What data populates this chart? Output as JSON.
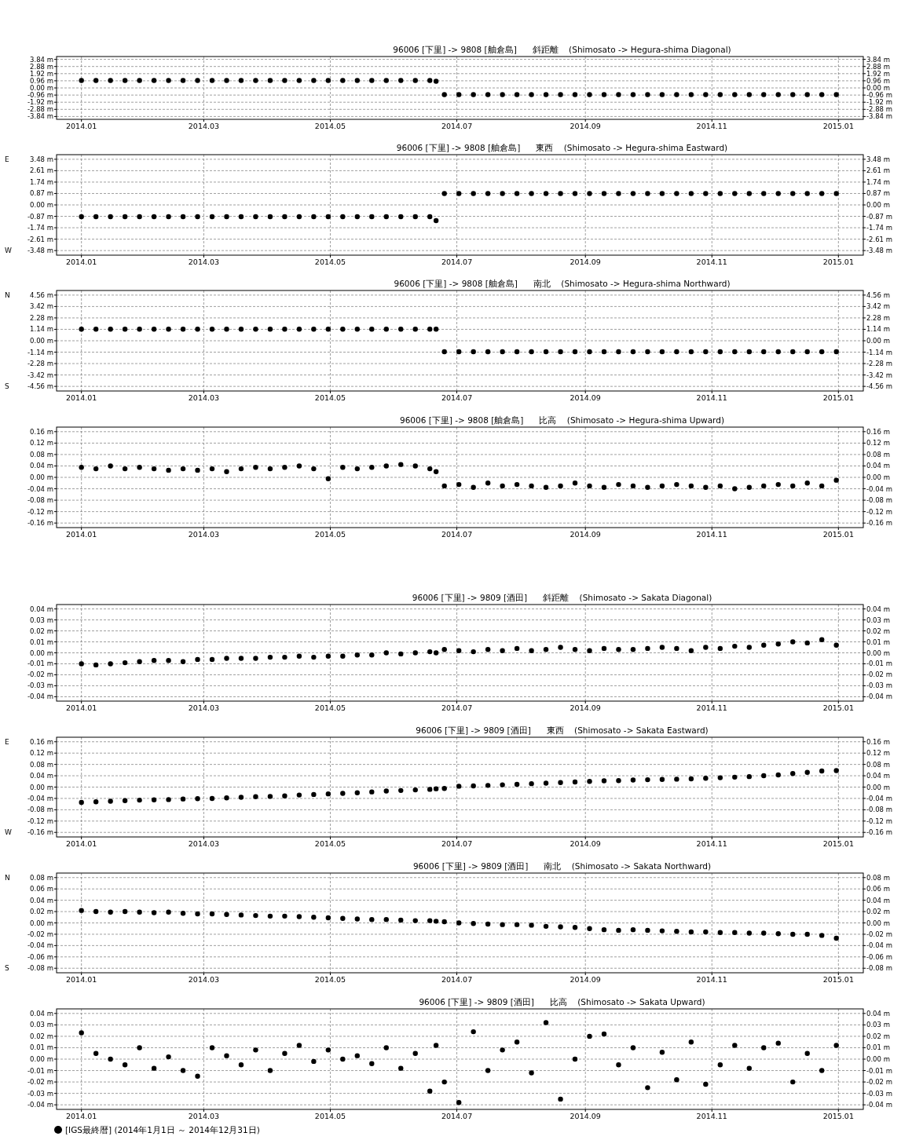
{
  "chart_data": [
    {
      "type": "scatter",
      "title": "96006 [下里] -> 9808 [舳倉島]      斜距離    (Shimosato -> Hegura-shima Diagonal)",
      "color": "#000000",
      "marker": "circle",
      "grid": true,
      "xlim": [
        "2013-12-20",
        "2015-01-13"
      ],
      "xticks": [
        {
          "value": "2014-01-01",
          "label": "2014.01"
        },
        {
          "value": "2014-03-01",
          "label": "2014.03"
        },
        {
          "value": "2014-05-01",
          "label": "2014.05"
        },
        {
          "value": "2014-07-01",
          "label": "2014.07"
        },
        {
          "value": "2014-09-01",
          "label": "2014.09"
        },
        {
          "value": "2014-11-01",
          "label": "2014.11"
        },
        {
          "value": "2015-01-01",
          "label": "2015.01"
        }
      ],
      "ylim": [
        -4.22,
        4.22
      ],
      "y2lim": [
        -4.22,
        4.22
      ],
      "yticks": [
        {
          "value": 3.84,
          "label": "3.84 m"
        },
        {
          "value": 2.88,
          "label": "2.88 m"
        },
        {
          "value": 1.92,
          "label": "1.92 m"
        },
        {
          "value": 0.96,
          "label": "0.96 m"
        },
        {
          "value": 0,
          "label": "0.00 m"
        },
        {
          "value": -0.96,
          "label": "-0.96 m"
        },
        {
          "value": -1.92,
          "label": "-1.92 m"
        },
        {
          "value": -2.88,
          "label": "-2.88 m"
        },
        {
          "value": -3.84,
          "label": "-3.84 m"
        }
      ],
      "y2ticks": [
        {
          "value": 3.84,
          "label": "3.84 m"
        },
        {
          "value": 2.88,
          "label": "2.88 m"
        },
        {
          "value": 1.92,
          "label": "1.92 m"
        },
        {
          "value": 0.96,
          "label": "0.96 m"
        },
        {
          "value": 0,
          "label": "0.00 m"
        },
        {
          "value": -0.96,
          "label": "-0.96 m"
        },
        {
          "value": -1.92,
          "label": "-1.92 m"
        },
        {
          "value": -2.88,
          "label": "-2.88 m"
        },
        {
          "value": -3.84,
          "label": "-3.84 m"
        }
      ],
      "x": [
        "2014-01-01",
        "2014-01-08",
        "2014-01-15",
        "2014-01-22",
        "2014-01-29",
        "2014-02-05",
        "2014-02-12",
        "2014-02-19",
        "2014-02-26",
        "2014-03-05",
        "2014-03-12",
        "2014-03-19",
        "2014-03-26",
        "2014-04-02",
        "2014-04-09",
        "2014-04-16",
        "2014-04-23",
        "2014-04-30",
        "2014-05-07",
        "2014-05-14",
        "2014-05-21",
        "2014-05-28",
        "2014-06-04",
        "2014-06-11",
        "2014-06-18",
        "2014-06-21",
        "2014-06-25",
        "2014-07-02",
        "2014-07-09",
        "2014-07-16",
        "2014-07-23",
        "2014-07-30",
        "2014-08-06",
        "2014-08-13",
        "2014-08-20",
        "2014-08-27",
        "2014-09-03",
        "2014-09-10",
        "2014-09-17",
        "2014-09-24",
        "2014-10-01",
        "2014-10-08",
        "2014-10-15",
        "2014-10-22",
        "2014-10-29",
        "2014-11-05",
        "2014-11-12",
        "2014-11-19",
        "2014-11-26",
        "2014-12-03",
        "2014-12-10",
        "2014-12-17",
        "2014-12-24",
        "2014-12-31"
      ],
      "values": [
        1.0,
        1.0,
        1.0,
        1.0,
        1.0,
        1.0,
        1.0,
        1.0,
        1.0,
        1.0,
        1.0,
        1.0,
        1.0,
        1.0,
        1.0,
        1.0,
        1.0,
        1.0,
        1.0,
        1.0,
        1.0,
        1.0,
        1.0,
        1.0,
        1.0,
        0.9,
        -0.9,
        -0.9,
        -0.9,
        -0.9,
        -0.9,
        -0.9,
        -0.9,
        -0.9,
        -0.9,
        -0.9,
        -0.9,
        -0.9,
        -0.9,
        -0.9,
        -0.9,
        -0.9,
        -0.9,
        -0.9,
        -0.9,
        -0.9,
        -0.9,
        -0.9,
        -0.9,
        -0.9,
        -0.9,
        -0.9,
        -0.9,
        -0.9
      ]
    },
    {
      "type": "scatter",
      "title": "96006 [下里] -> 9808 [舳倉島]      東西    (Shimosato -> Hegura-shima Eastward)",
      "color": "#000000",
      "marker": "circle",
      "grid": true,
      "annotations": [
        "E",
        "W"
      ],
      "xlim": [
        "2013-12-20",
        "2015-01-13"
      ],
      "xticks": [
        {
          "value": "2014-01-01",
          "label": "2014.01"
        },
        {
          "value": "2014-03-01",
          "label": "2014.03"
        },
        {
          "value": "2014-05-01",
          "label": "2014.05"
        },
        {
          "value": "2014-07-01",
          "label": "2014.07"
        },
        {
          "value": "2014-09-01",
          "label": "2014.09"
        },
        {
          "value": "2014-11-01",
          "label": "2014.11"
        },
        {
          "value": "2015-01-01",
          "label": "2015.01"
        }
      ],
      "ylim": [
        -3.83,
        3.83
      ],
      "y2lim": [
        -3.83,
        3.83
      ],
      "yticks": [
        {
          "value": 3.48,
          "label": "3.48 m"
        },
        {
          "value": 2.61,
          "label": "2.61 m"
        },
        {
          "value": 1.74,
          "label": "1.74 m"
        },
        {
          "value": 0.87,
          "label": "0.87 m"
        },
        {
          "value": 0,
          "label": "0.00 m"
        },
        {
          "value": -0.87,
          "label": "-0.87 m"
        },
        {
          "value": -1.74,
          "label": "-1.74 m"
        },
        {
          "value": -2.61,
          "label": "-2.61 m"
        },
        {
          "value": -3.48,
          "label": "-3.48 m"
        }
      ],
      "y2ticks": [
        {
          "value": 3.48,
          "label": "3.48 m"
        },
        {
          "value": 2.61,
          "label": "2.61 m"
        },
        {
          "value": 1.74,
          "label": "1.74 m"
        },
        {
          "value": 0.87,
          "label": "0.87 m"
        },
        {
          "value": 0,
          "label": "0.00 m"
        },
        {
          "value": -0.87,
          "label": "-0.87 m"
        },
        {
          "value": -1.74,
          "label": "-1.74 m"
        },
        {
          "value": -2.61,
          "label": "-2.61 m"
        },
        {
          "value": -3.48,
          "label": "-3.48 m"
        }
      ],
      "x": [
        "2014-01-01",
        "2014-01-08",
        "2014-01-15",
        "2014-01-22",
        "2014-01-29",
        "2014-02-05",
        "2014-02-12",
        "2014-02-19",
        "2014-02-26",
        "2014-03-05",
        "2014-03-12",
        "2014-03-19",
        "2014-03-26",
        "2014-04-02",
        "2014-04-09",
        "2014-04-16",
        "2014-04-23",
        "2014-04-30",
        "2014-05-07",
        "2014-05-14",
        "2014-05-21",
        "2014-05-28",
        "2014-06-04",
        "2014-06-11",
        "2014-06-18",
        "2014-06-21",
        "2014-06-25",
        "2014-07-02",
        "2014-07-09",
        "2014-07-16",
        "2014-07-23",
        "2014-07-30",
        "2014-08-06",
        "2014-08-13",
        "2014-08-20",
        "2014-08-27",
        "2014-09-03",
        "2014-09-10",
        "2014-09-17",
        "2014-09-24",
        "2014-10-01",
        "2014-10-08",
        "2014-10-15",
        "2014-10-22",
        "2014-10-29",
        "2014-11-05",
        "2014-11-12",
        "2014-11-19",
        "2014-11-26",
        "2014-12-03",
        "2014-12-10",
        "2014-12-17",
        "2014-12-24",
        "2014-12-31"
      ],
      "values": [
        -0.9,
        -0.9,
        -0.9,
        -0.9,
        -0.9,
        -0.9,
        -0.9,
        -0.9,
        -0.9,
        -0.9,
        -0.9,
        -0.9,
        -0.9,
        -0.9,
        -0.9,
        -0.9,
        -0.9,
        -0.9,
        -0.9,
        -0.9,
        -0.9,
        -0.9,
        -0.9,
        -0.9,
        -0.9,
        -1.2,
        0.87,
        0.87,
        0.87,
        0.87,
        0.87,
        0.87,
        0.87,
        0.87,
        0.87,
        0.87,
        0.87,
        0.87,
        0.87,
        0.87,
        0.87,
        0.87,
        0.87,
        0.87,
        0.87,
        0.87,
        0.87,
        0.87,
        0.87,
        0.87,
        0.87,
        0.87,
        0.87,
        0.87
      ]
    },
    {
      "type": "scatter",
      "title": "96006 [下里] -> 9808 [舳倉島]      南北    (Shimosato -> Hegura-shima Northward)",
      "color": "#000000",
      "marker": "circle",
      "grid": true,
      "annotations": [
        "N",
        "S"
      ],
      "xlim": [
        "2013-12-20",
        "2015-01-13"
      ],
      "xticks": [
        {
          "value": "2014-01-01",
          "label": "2014.01"
        },
        {
          "value": "2014-03-01",
          "label": "2014.03"
        },
        {
          "value": "2014-05-01",
          "label": "2014.05"
        },
        {
          "value": "2014-07-01",
          "label": "2014.07"
        },
        {
          "value": "2014-09-01",
          "label": "2014.09"
        },
        {
          "value": "2014-11-01",
          "label": "2014.11"
        },
        {
          "value": "2015-01-01",
          "label": "2015.01"
        }
      ],
      "ylim": [
        -5.02,
        5.02
      ],
      "y2lim": [
        -5.02,
        5.02
      ],
      "yticks": [
        {
          "value": 4.56,
          "label": "4.56 m"
        },
        {
          "value": 3.42,
          "label": "3.42 m"
        },
        {
          "value": 2.28,
          "label": "2.28 m"
        },
        {
          "value": 1.14,
          "label": "1.14 m"
        },
        {
          "value": 0,
          "label": "0.00 m"
        },
        {
          "value": -1.14,
          "label": "-1.14 m"
        },
        {
          "value": -2.28,
          "label": "-2.28 m"
        },
        {
          "value": -3.42,
          "label": "-3.42 m"
        },
        {
          "value": -4.56,
          "label": "-4.56 m"
        }
      ],
      "y2ticks": [
        {
          "value": 4.56,
          "label": "4.56 m"
        },
        {
          "value": 3.42,
          "label": "3.42 m"
        },
        {
          "value": 2.28,
          "label": "2.28 m"
        },
        {
          "value": 1.14,
          "label": "1.14 m"
        },
        {
          "value": 0,
          "label": "0.00 m"
        },
        {
          "value": -1.14,
          "label": "-1.14 m"
        },
        {
          "value": -2.28,
          "label": "-2.28 m"
        },
        {
          "value": -3.42,
          "label": "-3.42 m"
        },
        {
          "value": -4.56,
          "label": "-4.56 m"
        }
      ],
      "x": [
        "2014-01-01",
        "2014-01-08",
        "2014-01-15",
        "2014-01-22",
        "2014-01-29",
        "2014-02-05",
        "2014-02-12",
        "2014-02-19",
        "2014-02-26",
        "2014-03-05",
        "2014-03-12",
        "2014-03-19",
        "2014-03-26",
        "2014-04-02",
        "2014-04-09",
        "2014-04-16",
        "2014-04-23",
        "2014-04-30",
        "2014-05-07",
        "2014-05-14",
        "2014-05-21",
        "2014-05-28",
        "2014-06-04",
        "2014-06-11",
        "2014-06-18",
        "2014-06-21",
        "2014-06-25",
        "2014-07-02",
        "2014-07-09",
        "2014-07-16",
        "2014-07-23",
        "2014-07-30",
        "2014-08-06",
        "2014-08-13",
        "2014-08-20",
        "2014-08-27",
        "2014-09-03",
        "2014-09-10",
        "2014-09-17",
        "2014-09-24",
        "2014-10-01",
        "2014-10-08",
        "2014-10-15",
        "2014-10-22",
        "2014-10-29",
        "2014-11-05",
        "2014-11-12",
        "2014-11-19",
        "2014-11-26",
        "2014-12-03",
        "2014-12-10",
        "2014-12-17",
        "2014-12-24",
        "2014-12-31"
      ],
      "values": [
        1.16,
        1.16,
        1.16,
        1.16,
        1.16,
        1.16,
        1.16,
        1.16,
        1.16,
        1.16,
        1.16,
        1.16,
        1.16,
        1.16,
        1.16,
        1.16,
        1.16,
        1.16,
        1.16,
        1.16,
        1.16,
        1.16,
        1.16,
        1.16,
        1.16,
        1.16,
        -1.1,
        -1.1,
        -1.1,
        -1.1,
        -1.1,
        -1.1,
        -1.1,
        -1.1,
        -1.1,
        -1.1,
        -1.1,
        -1.1,
        -1.1,
        -1.1,
        -1.1,
        -1.1,
        -1.1,
        -1.1,
        -1.1,
        -1.1,
        -1.1,
        -1.1,
        -1.1,
        -1.1,
        -1.1,
        -1.1,
        -1.1,
        -1.1
      ]
    },
    {
      "type": "scatter",
      "title": "96006 [下里] -> 9808 [舳倉島]      比高    (Shimosato -> Hegura-shima Upward)",
      "color": "#000000",
      "marker": "circle",
      "grid": true,
      "xlim": [
        "2013-12-20",
        "2015-01-13"
      ],
      "xticks": [
        {
          "value": "2014-01-01",
          "label": "2014.01"
        },
        {
          "value": "2014-03-01",
          "label": "2014.03"
        },
        {
          "value": "2014-05-01",
          "label": "2014.05"
        },
        {
          "value": "2014-07-01",
          "label": "2014.07"
        },
        {
          "value": "2014-09-01",
          "label": "2014.09"
        },
        {
          "value": "2014-11-01",
          "label": "2014.11"
        },
        {
          "value": "2015-01-01",
          "label": "2015.01"
        }
      ],
      "ylim": [
        -0.176,
        0.176
      ],
      "y2lim": [
        -0.176,
        0.176
      ],
      "yticks": [
        {
          "value": 0.16,
          "label": "0.16 m"
        },
        {
          "value": 0.12,
          "label": "0.12 m"
        },
        {
          "value": 0.08,
          "label": "0.08 m"
        },
        {
          "value": 0.04,
          "label": "0.04 m"
        },
        {
          "value": 0,
          "label": "0.00 m"
        },
        {
          "value": -0.04,
          "label": "-0.04 m"
        },
        {
          "value": -0.08,
          "label": "-0.08 m"
        },
        {
          "value": -0.12,
          "label": "-0.12 m"
        },
        {
          "value": -0.16,
          "label": "-0.16 m"
        }
      ],
      "y2ticks": [
        {
          "value": 0.16,
          "label": "0.16 m"
        },
        {
          "value": 0.12,
          "label": "0.12 m"
        },
        {
          "value": 0.08,
          "label": "0.08 m"
        },
        {
          "value": 0.04,
          "label": "0.04 m"
        },
        {
          "value": 0,
          "label": "0.00 m"
        },
        {
          "value": -0.04,
          "label": "-0.04 m"
        },
        {
          "value": -0.08,
          "label": "-0.08 m"
        },
        {
          "value": -0.12,
          "label": "-0.12 m"
        },
        {
          "value": -0.16,
          "label": "-0.16 m"
        }
      ],
      "x": [
        "2014-01-01",
        "2014-01-08",
        "2014-01-15",
        "2014-01-22",
        "2014-01-29",
        "2014-02-05",
        "2014-02-12",
        "2014-02-19",
        "2014-02-26",
        "2014-03-05",
        "2014-03-12",
        "2014-03-19",
        "2014-03-26",
        "2014-04-02",
        "2014-04-09",
        "2014-04-16",
        "2014-04-23",
        "2014-04-30",
        "2014-05-07",
        "2014-05-14",
        "2014-05-21",
        "2014-05-28",
        "2014-06-04",
        "2014-06-11",
        "2014-06-18",
        "2014-06-21",
        "2014-06-25",
        "2014-07-02",
        "2014-07-09",
        "2014-07-16",
        "2014-07-23",
        "2014-07-30",
        "2014-08-06",
        "2014-08-13",
        "2014-08-20",
        "2014-08-27",
        "2014-09-03",
        "2014-09-10",
        "2014-09-17",
        "2014-09-24",
        "2014-10-01",
        "2014-10-08",
        "2014-10-15",
        "2014-10-22",
        "2014-10-29",
        "2014-11-05",
        "2014-11-12",
        "2014-11-19",
        "2014-11-26",
        "2014-12-03",
        "2014-12-10",
        "2014-12-17",
        "2014-12-24",
        "2014-12-31"
      ],
      "values": [
        0.035,
        0.03,
        0.04,
        0.03,
        0.035,
        0.03,
        0.025,
        0.03,
        0.025,
        0.03,
        0.02,
        0.03,
        0.035,
        0.03,
        0.035,
        0.04,
        0.03,
        -0.005,
        0.035,
        0.03,
        0.035,
        0.04,
        0.045,
        0.04,
        0.03,
        0.02,
        -0.03,
        -0.025,
        -0.035,
        -0.02,
        -0.03,
        -0.025,
        -0.03,
        -0.035,
        -0.03,
        -0.02,
        -0.03,
        -0.035,
        -0.025,
        -0.03,
        -0.035,
        -0.03,
        -0.025,
        -0.03,
        -0.035,
        -0.03,
        -0.04,
        -0.035,
        -0.03,
        -0.025,
        -0.03,
        -0.02,
        -0.03,
        -0.01
      ]
    },
    {
      "type": "scatter",
      "title": "96006 [下里] -> 9809 [酒田]      斜距離    (Shimosato -> Sakata Diagonal)",
      "color": "#000000",
      "marker": "circle",
      "grid": true,
      "xlim": [
        "2013-12-20",
        "2015-01-13"
      ],
      "xticks": [
        {
          "value": "2014-01-01",
          "label": "2014.01"
        },
        {
          "value": "2014-03-01",
          "label": "2014.03"
        },
        {
          "value": "2014-05-01",
          "label": "2014.05"
        },
        {
          "value": "2014-07-01",
          "label": "2014.07"
        },
        {
          "value": "2014-09-01",
          "label": "2014.09"
        },
        {
          "value": "2014-11-01",
          "label": "2014.11"
        },
        {
          "value": "2015-01-01",
          "label": "2015.01"
        }
      ],
      "ylim": [
        -0.044,
        0.044
      ],
      "y2lim": [
        -0.044,
        0.044
      ],
      "yticks": [
        {
          "value": 0.04,
          "label": "0.04 m"
        },
        {
          "value": 0.03,
          "label": "0.03 m"
        },
        {
          "value": 0.02,
          "label": "0.02 m"
        },
        {
          "value": 0.01,
          "label": "0.01 m"
        },
        {
          "value": 0,
          "label": "0.00 m"
        },
        {
          "value": -0.01,
          "label": "-0.01 m"
        },
        {
          "value": -0.02,
          "label": "-0.02 m"
        },
        {
          "value": -0.03,
          "label": "-0.03 m"
        },
        {
          "value": -0.04,
          "label": "-0.04 m"
        }
      ],
      "y2ticks": [
        {
          "value": 0.04,
          "label": "0.04 m"
        },
        {
          "value": 0.03,
          "label": "0.03 m"
        },
        {
          "value": 0.02,
          "label": "0.02 m"
        },
        {
          "value": 0.01,
          "label": "0.01 m"
        },
        {
          "value": 0,
          "label": "0.00 m"
        },
        {
          "value": -0.01,
          "label": "-0.01 m"
        },
        {
          "value": -0.02,
          "label": "-0.02 m"
        },
        {
          "value": -0.03,
          "label": "-0.03 m"
        },
        {
          "value": -0.04,
          "label": "-0.04 m"
        }
      ],
      "x": [
        "2014-01-01",
        "2014-01-08",
        "2014-01-15",
        "2014-01-22",
        "2014-01-29",
        "2014-02-05",
        "2014-02-12",
        "2014-02-19",
        "2014-02-26",
        "2014-03-05",
        "2014-03-12",
        "2014-03-19",
        "2014-03-26",
        "2014-04-02",
        "2014-04-09",
        "2014-04-16",
        "2014-04-23",
        "2014-04-30",
        "2014-05-07",
        "2014-05-14",
        "2014-05-21",
        "2014-05-28",
        "2014-06-04",
        "2014-06-11",
        "2014-06-18",
        "2014-06-21",
        "2014-06-25",
        "2014-07-02",
        "2014-07-09",
        "2014-07-16",
        "2014-07-23",
        "2014-07-30",
        "2014-08-06",
        "2014-08-13",
        "2014-08-20",
        "2014-08-27",
        "2014-09-03",
        "2014-09-10",
        "2014-09-17",
        "2014-09-24",
        "2014-10-01",
        "2014-10-08",
        "2014-10-15",
        "2014-10-22",
        "2014-10-29",
        "2014-11-05",
        "2014-11-12",
        "2014-11-19",
        "2014-11-26",
        "2014-12-03",
        "2014-12-10",
        "2014-12-17",
        "2014-12-24",
        "2014-12-31"
      ],
      "values": [
        -0.01,
        -0.011,
        -0.01,
        -0.009,
        -0.008,
        -0.007,
        -0.007,
        -0.008,
        -0.006,
        -0.006,
        -0.005,
        -0.005,
        -0.005,
        -0.004,
        -0.004,
        -0.003,
        -0.004,
        -0.003,
        -0.003,
        -0.002,
        -0.002,
        0.0,
        -0.001,
        0.0,
        0.001,
        0.0,
        0.003,
        0.002,
        0.001,
        0.003,
        0.002,
        0.004,
        0.002,
        0.003,
        0.005,
        0.003,
        0.002,
        0.004,
        0.003,
        0.003,
        0.004,
        0.005,
        0.004,
        0.002,
        0.005,
        0.004,
        0.006,
        0.005,
        0.007,
        0.008,
        0.01,
        0.009,
        0.012,
        0.007
      ]
    },
    {
      "type": "scatter",
      "title": "96006 [下里] -> 9809 [酒田]      東西    (Shimosato -> Sakata Eastward)",
      "color": "#000000",
      "marker": "circle",
      "grid": true,
      "annotations": [
        "E",
        "W"
      ],
      "xlim": [
        "2013-12-20",
        "2015-01-13"
      ],
      "xticks": [
        {
          "value": "2014-01-01",
          "label": "2014.01"
        },
        {
          "value": "2014-03-01",
          "label": "2014.03"
        },
        {
          "value": "2014-05-01",
          "label": "2014.05"
        },
        {
          "value": "2014-07-01",
          "label": "2014.07"
        },
        {
          "value": "2014-09-01",
          "label": "2014.09"
        },
        {
          "value": "2014-11-01",
          "label": "2014.11"
        },
        {
          "value": "2015-01-01",
          "label": "2015.01"
        }
      ],
      "ylim": [
        -0.176,
        0.176
      ],
      "y2lim": [
        -0.176,
        0.176
      ],
      "yticks": [
        {
          "value": 0.16,
          "label": "0.16 m"
        },
        {
          "value": 0.12,
          "label": "0.12 m"
        },
        {
          "value": 0.08,
          "label": "0.08 m"
        },
        {
          "value": 0.04,
          "label": "0.04 m"
        },
        {
          "value": 0,
          "label": "0.00 m"
        },
        {
          "value": -0.04,
          "label": "-0.04 m"
        },
        {
          "value": -0.08,
          "label": "-0.08 m"
        },
        {
          "value": -0.12,
          "label": "-0.12 m"
        },
        {
          "value": -0.16,
          "label": "-0.16 m"
        }
      ],
      "y2ticks": [
        {
          "value": 0.16,
          "label": "0.16 m"
        },
        {
          "value": 0.12,
          "label": "0.12 m"
        },
        {
          "value": 0.08,
          "label": "0.08 m"
        },
        {
          "value": 0.04,
          "label": "0.04 m"
        },
        {
          "value": 0,
          "label": "0.00 m"
        },
        {
          "value": -0.04,
          "label": "-0.04 m"
        },
        {
          "value": -0.08,
          "label": "-0.08 m"
        },
        {
          "value": -0.12,
          "label": "-0.12 m"
        },
        {
          "value": -0.16,
          "label": "-0.16 m"
        }
      ],
      "x": [
        "2014-01-01",
        "2014-01-08",
        "2014-01-15",
        "2014-01-22",
        "2014-01-29",
        "2014-02-05",
        "2014-02-12",
        "2014-02-19",
        "2014-02-26",
        "2014-03-05",
        "2014-03-12",
        "2014-03-19",
        "2014-03-26",
        "2014-04-02",
        "2014-04-09",
        "2014-04-16",
        "2014-04-23",
        "2014-04-30",
        "2014-05-07",
        "2014-05-14",
        "2014-05-21",
        "2014-05-28",
        "2014-06-04",
        "2014-06-11",
        "2014-06-18",
        "2014-06-21",
        "2014-06-25",
        "2014-07-02",
        "2014-07-09",
        "2014-07-16",
        "2014-07-23",
        "2014-07-30",
        "2014-08-06",
        "2014-08-13",
        "2014-08-20",
        "2014-08-27",
        "2014-09-03",
        "2014-09-10",
        "2014-09-17",
        "2014-09-24",
        "2014-10-01",
        "2014-10-08",
        "2014-10-15",
        "2014-10-22",
        "2014-10-29",
        "2014-11-05",
        "2014-11-12",
        "2014-11-19",
        "2014-11-26",
        "2014-12-03",
        "2014-12-10",
        "2014-12-17",
        "2014-12-24",
        "2014-12-31"
      ],
      "values": [
        -0.054,
        -0.052,
        -0.05,
        -0.048,
        -0.046,
        -0.045,
        -0.044,
        -0.042,
        -0.041,
        -0.04,
        -0.038,
        -0.036,
        -0.034,
        -0.033,
        -0.031,
        -0.028,
        -0.026,
        -0.024,
        -0.022,
        -0.02,
        -0.017,
        -0.014,
        -0.012,
        -0.01,
        -0.008,
        -0.006,
        -0.005,
        0.003,
        0.004,
        0.006,
        0.008,
        0.01,
        0.012,
        0.014,
        0.016,
        0.018,
        0.02,
        0.022,
        0.023,
        0.025,
        0.026,
        0.027,
        0.028,
        0.029,
        0.031,
        0.033,
        0.035,
        0.037,
        0.04,
        0.043,
        0.048,
        0.052,
        0.057,
        0.058
      ]
    },
    {
      "type": "scatter",
      "title": "96006 [下里] -> 9809 [酒田]      南北    (Shimosato -> Sakata Northward)",
      "color": "#000000",
      "marker": "circle",
      "grid": true,
      "annotations": [
        "N",
        "S"
      ],
      "xlim": [
        "2013-12-20",
        "2015-01-13"
      ],
      "xticks": [
        {
          "value": "2014-01-01",
          "label": "2014.01"
        },
        {
          "value": "2014-03-01",
          "label": "2014.03"
        },
        {
          "value": "2014-05-01",
          "label": "2014.05"
        },
        {
          "value": "2014-07-01",
          "label": "2014.07"
        },
        {
          "value": "2014-09-01",
          "label": "2014.09"
        },
        {
          "value": "2014-11-01",
          "label": "2014.11"
        },
        {
          "value": "2015-01-01",
          "label": "2015.01"
        }
      ],
      "ylim": [
        -0.088,
        0.088
      ],
      "y2lim": [
        -0.088,
        0.088
      ],
      "yticks": [
        {
          "value": 0.08,
          "label": "0.08 m"
        },
        {
          "value": 0.06,
          "label": "0.06 m"
        },
        {
          "value": 0.04,
          "label": "0.04 m"
        },
        {
          "value": 0.02,
          "label": "0.02 m"
        },
        {
          "value": 0,
          "label": "0.00 m"
        },
        {
          "value": -0.02,
          "label": "-0.02 m"
        },
        {
          "value": -0.04,
          "label": "-0.04 m"
        },
        {
          "value": -0.06,
          "label": "-0.06 m"
        },
        {
          "value": -0.08,
          "label": "-0.08 m"
        }
      ],
      "y2ticks": [
        {
          "value": 0.08,
          "label": "0.08 m"
        },
        {
          "value": 0.06,
          "label": "0.06 m"
        },
        {
          "value": 0.04,
          "label": "0.04 m"
        },
        {
          "value": 0.02,
          "label": "0.02 m"
        },
        {
          "value": 0,
          "label": "0.00 m"
        },
        {
          "value": -0.02,
          "label": "-0.02 m"
        },
        {
          "value": -0.04,
          "label": "-0.04 m"
        },
        {
          "value": -0.06,
          "label": "-0.06 m"
        },
        {
          "value": -0.08,
          "label": "-0.08 m"
        }
      ],
      "x": [
        "2014-01-01",
        "2014-01-08",
        "2014-01-15",
        "2014-01-22",
        "2014-01-29",
        "2014-02-05",
        "2014-02-12",
        "2014-02-19",
        "2014-02-26",
        "2014-03-05",
        "2014-03-12",
        "2014-03-19",
        "2014-03-26",
        "2014-04-02",
        "2014-04-09",
        "2014-04-16",
        "2014-04-23",
        "2014-04-30",
        "2014-05-07",
        "2014-05-14",
        "2014-05-21",
        "2014-05-28",
        "2014-06-04",
        "2014-06-11",
        "2014-06-18",
        "2014-06-21",
        "2014-06-25",
        "2014-07-02",
        "2014-07-09",
        "2014-07-16",
        "2014-07-23",
        "2014-07-30",
        "2014-08-06",
        "2014-08-13",
        "2014-08-20",
        "2014-08-27",
        "2014-09-03",
        "2014-09-10",
        "2014-09-17",
        "2014-09-24",
        "2014-10-01",
        "2014-10-08",
        "2014-10-15",
        "2014-10-22",
        "2014-10-29",
        "2014-11-05",
        "2014-11-12",
        "2014-11-19",
        "2014-11-26",
        "2014-12-03",
        "2014-12-10",
        "2014-12-17",
        "2014-12-24",
        "2014-12-31"
      ],
      "values": [
        0.022,
        0.02,
        0.019,
        0.02,
        0.019,
        0.018,
        0.019,
        0.017,
        0.016,
        0.016,
        0.015,
        0.014,
        0.013,
        0.012,
        0.012,
        0.011,
        0.01,
        0.009,
        0.008,
        0.007,
        0.006,
        0.006,
        0.005,
        0.004,
        0.004,
        0.003,
        0.002,
        0.0,
        -0.001,
        -0.002,
        -0.003,
        -0.003,
        -0.004,
        -0.006,
        -0.007,
        -0.008,
        -0.01,
        -0.012,
        -0.013,
        -0.012,
        -0.013,
        -0.014,
        -0.015,
        -0.016,
        -0.016,
        -0.017,
        -0.017,
        -0.018,
        -0.018,
        -0.019,
        -0.02,
        -0.02,
        -0.022,
        -0.027
      ]
    },
    {
      "type": "scatter",
      "title": "96006 [下里] -> 9809 [酒田]      比高    (Shimosato -> Sakata Upward)",
      "marker": "circle",
      "grid": true,
      "legend": "bottom",
      "xlim": [
        "2013-12-20",
        "2015-01-13"
      ],
      "xticks": [
        {
          "value": "2014-01-01",
          "label": "2014.01"
        },
        {
          "value": "2014-03-01",
          "label": "2014.03"
        },
        {
          "value": "2014-05-01",
          "label": "2014.05"
        },
        {
          "value": "2014-07-01",
          "label": "2014.07"
        },
        {
          "value": "2014-09-01",
          "label": "2014.09"
        },
        {
          "value": "2014-11-01",
          "label": "2014.11"
        },
        {
          "value": "2015-01-01",
          "label": "2015.01"
        }
      ],
      "ylim": [
        -0.044,
        0.044
      ],
      "y2lim": [
        -0.044,
        0.044
      ],
      "yticks": [
        {
          "value": 0.04,
          "label": "0.04 m"
        },
        {
          "value": 0.03,
          "label": "0.03 m"
        },
        {
          "value": 0.02,
          "label": "0.02 m"
        },
        {
          "value": 0.01,
          "label": "0.01 m"
        },
        {
          "value": 0,
          "label": "0.00 m"
        },
        {
          "value": -0.01,
          "label": "-0.01 m"
        },
        {
          "value": -0.02,
          "label": "-0.02 m"
        },
        {
          "value": -0.03,
          "label": "-0.03 m"
        },
        {
          "value": -0.04,
          "label": "-0.04 m"
        }
      ],
      "y2ticks": [
        {
          "value": 0.04,
          "label": "0.04 m"
        },
        {
          "value": 0.03,
          "label": "0.03 m"
        },
        {
          "value": 0.02,
          "label": "0.02 m"
        },
        {
          "value": 0.01,
          "label": "0.01 m"
        },
        {
          "value": 0,
          "label": "0.00 m"
        },
        {
          "value": -0.01,
          "label": "-0.01 m"
        },
        {
          "value": -0.02,
          "label": "-0.02 m"
        },
        {
          "value": -0.03,
          "label": "-0.03 m"
        },
        {
          "value": -0.04,
          "label": "-0.04 m"
        }
      ],
      "x": [
        "2014-01-01",
        "2014-01-08",
        "2014-01-15",
        "2014-01-22",
        "2014-01-29",
        "2014-02-05",
        "2014-02-12",
        "2014-02-19",
        "2014-02-26",
        "2014-03-05",
        "2014-03-12",
        "2014-03-19",
        "2014-03-26",
        "2014-04-02",
        "2014-04-09",
        "2014-04-16",
        "2014-04-23",
        "2014-04-30",
        "2014-05-07",
        "2014-05-14",
        "2014-05-21",
        "2014-05-28",
        "2014-06-04",
        "2014-06-11",
        "2014-06-18",
        "2014-06-21",
        "2014-06-25",
        "2014-07-02",
        "2014-07-09",
        "2014-07-16",
        "2014-07-23",
        "2014-07-30",
        "2014-08-06",
        "2014-08-13",
        "2014-08-20",
        "2014-08-27",
        "2014-09-03",
        "2014-09-10",
        "2014-09-17",
        "2014-09-24",
        "2014-10-01",
        "2014-10-08",
        "2014-10-15",
        "2014-10-22",
        "2014-10-29",
        "2014-11-05",
        "2014-11-12",
        "2014-11-19",
        "2014-11-26",
        "2014-12-03",
        "2014-12-10",
        "2014-12-17",
        "2014-12-24",
        "2014-12-31"
      ],
      "series": [
        {
          "name": "[IGS最終暦] (2014年1月1日 ～ 2014年12月31日)",
          "color": "#000000",
          "values": [
            0.023,
            0.005,
            0.0,
            -0.005,
            0.01,
            -0.008,
            0.002,
            -0.01,
            -0.015,
            0.01,
            0.003,
            -0.005,
            0.008,
            -0.01,
            0.005,
            0.012,
            -0.002,
            0.008,
            0.0,
            0.003,
            -0.004,
            0.01,
            -0.008,
            0.005,
            -0.028,
            0.012,
            -0.02,
            -0.038,
            0.024,
            -0.01,
            0.008,
            0.015,
            -0.012,
            0.032,
            -0.035,
            0.0,
            0.02,
            0.022,
            -0.005,
            0.01,
            -0.025,
            0.006,
            -0.018,
            0.015,
            -0.022,
            -0.005,
            0.012,
            -0.008,
            0.01,
            0.014,
            -0.02,
            0.005,
            -0.01,
            0.012
          ]
        }
      ]
    }
  ]
}
